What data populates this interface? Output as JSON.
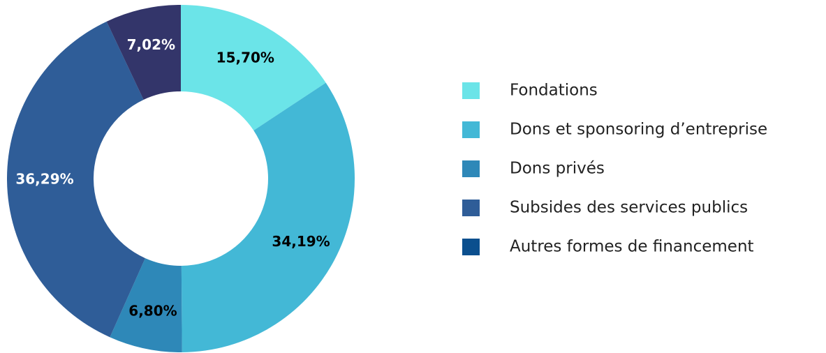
{
  "chart_data": {
    "type": "donut",
    "categories": [
      "Fondations",
      "Dons et sponsoring d’entreprise",
      "Dons privés",
      "Subsides des services publics",
      "Autres formes de financement"
    ],
    "values": [
      15.7,
      34.19,
      6.8,
      36.29,
      7.02
    ],
    "value_labels": [
      "15,70%",
      "34,19%",
      "6,80%",
      "36,29%",
      "7,02%"
    ],
    "colors": [
      "#6be4e8",
      "#43b8d6",
      "#2e88b8",
      "#2f5d98",
      "#33356a"
    ],
    "legend_colors": [
      "#6be4e8",
      "#43b8d6",
      "#2e88b8",
      "#2f5d98",
      "#0b4f8e"
    ],
    "label_colors": [
      "#000000",
      "#000000",
      "#000000",
      "#ffffff",
      "#ffffff"
    ],
    "legend": "right"
  }
}
